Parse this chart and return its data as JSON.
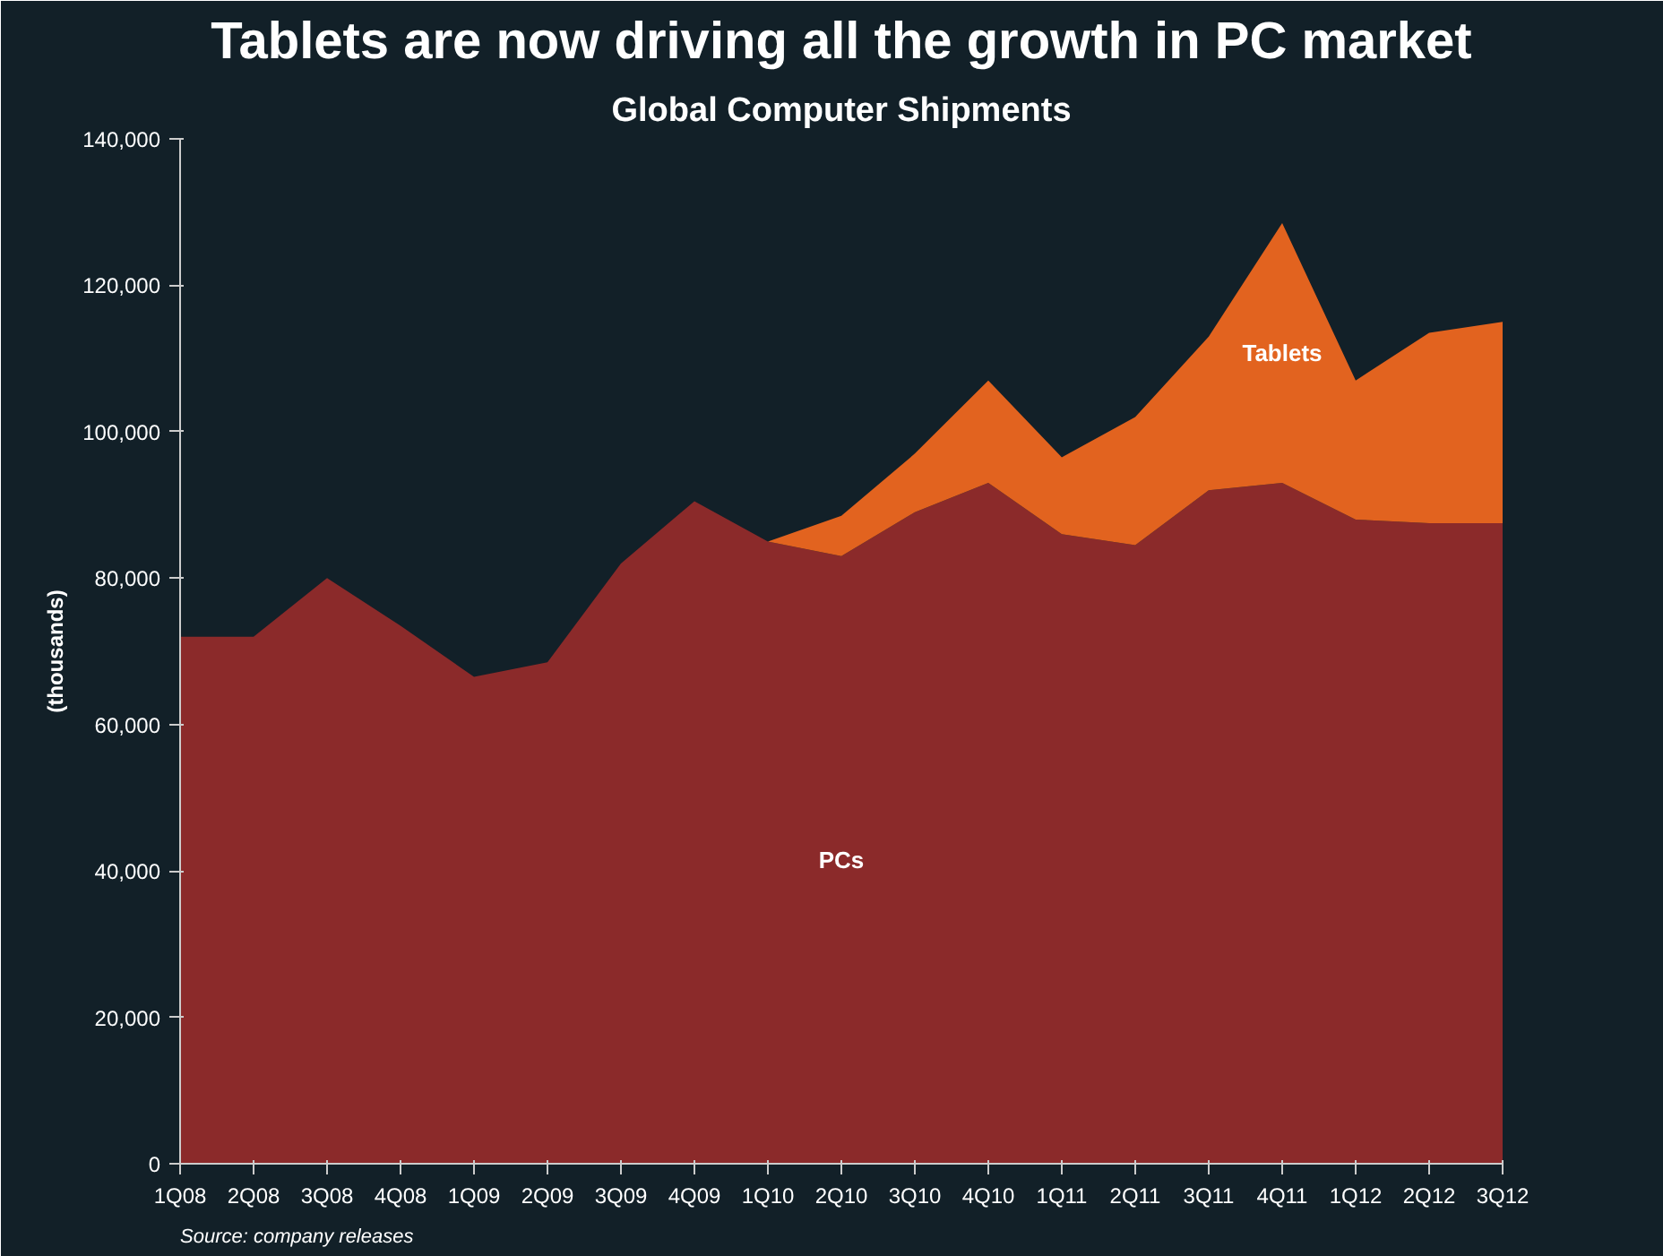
{
  "chart_data": {
    "type": "area",
    "stacked": true,
    "title": "Tablets are now driving all the growth in PC market",
    "subtitle": "Global Computer Shipments",
    "ylabel": "(thousands)",
    "categories": [
      "1Q08",
      "2Q08",
      "3Q08",
      "4Q08",
      "1Q09",
      "2Q09",
      "3Q09",
      "4Q09",
      "1Q10",
      "2Q10",
      "3Q10",
      "4Q10",
      "1Q11",
      "2Q11",
      "3Q11",
      "4Q11",
      "1Q12",
      "2Q12",
      "3Q12"
    ],
    "series": [
      {
        "name": "PCs",
        "color": "#8b2a2a",
        "values": [
          72000,
          72000,
          80000,
          73500,
          66500,
          68500,
          82000,
          90500,
          85000,
          83000,
          89000,
          93000,
          86000,
          84500,
          92000,
          93000,
          88000,
          87500,
          87500
        ]
      },
      {
        "name": "Tablets",
        "color": "#e2631f",
        "values": [
          0,
          0,
          0,
          0,
          0,
          0,
          0,
          0,
          0,
          5500,
          8000,
          14000,
          10500,
          17500,
          21000,
          35500,
          19000,
          26000,
          27500
        ]
      }
    ],
    "ylim": [
      0,
      140000
    ],
    "yticks": [
      0,
      {
        "value": 20000,
        "label": "20,000"
      },
      {
        "value": 40000,
        "label": "40,000"
      },
      {
        "value": 60000,
        "label": "60,000"
      },
      {
        "value": 80000,
        "label": "80,000"
      },
      {
        "value": 100000,
        "label": "100,000"
      },
      {
        "value": 120000,
        "label": "120,000"
      },
      {
        "value": 140000,
        "label": "140,000"
      }
    ],
    "grid": false,
    "annotations": [
      "Source: company releases"
    ]
  }
}
